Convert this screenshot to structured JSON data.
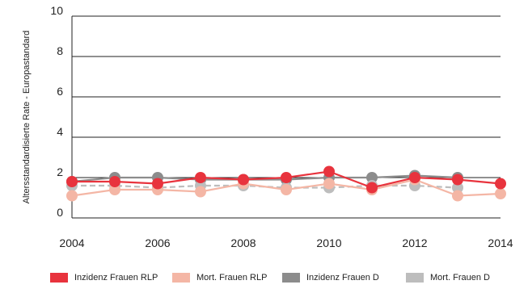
{
  "chart_data": {
    "type": "line",
    "ylabel": "Altersstandardisierte Rate - Europastandard",
    "xlabel": "",
    "title": "",
    "x": [
      2004,
      2005,
      2006,
      2007,
      2008,
      2009,
      2010,
      2011,
      2012,
      2013,
      2014
    ],
    "xticks": [
      "2004",
      "2006",
      "2008",
      "2010",
      "2012",
      "2014"
    ],
    "yticks": [
      "0",
      "2",
      "4",
      "6",
      "8",
      "10"
    ],
    "ylim": [
      0,
      10
    ],
    "xlim": [
      2004,
      2014
    ],
    "grid": "horizontal",
    "legend_position": "bottom",
    "series": [
      {
        "name": "Inzidenz Frauen D",
        "color": "#8c8c8c",
        "dash": "solid",
        "values": [
          1.8,
          2.0,
          2.0,
          1.9,
          1.9,
          1.9,
          2.0,
          2.0,
          2.1,
          2.0,
          null
        ]
      },
      {
        "name": "Mort. Frauen D",
        "color": "#bdbdbd",
        "dash": "dashed",
        "values": [
          1.6,
          1.6,
          1.5,
          1.6,
          1.6,
          1.5,
          1.5,
          1.6,
          1.6,
          1.5,
          null
        ]
      },
      {
        "name": "Mort. Frauen RLP",
        "color": "#f4b6a5",
        "dash": "solid",
        "values": [
          1.1,
          1.4,
          1.4,
          1.3,
          1.7,
          1.4,
          1.7,
          1.4,
          1.9,
          1.1,
          1.2
        ]
      },
      {
        "name": "Inzidenz Frauen RLP",
        "color": "#e8333d",
        "dash": "solid",
        "values": [
          1.8,
          1.8,
          1.7,
          2.0,
          1.9,
          2.0,
          2.3,
          1.5,
          2.0,
          1.9,
          1.7
        ]
      }
    ],
    "legend": [
      {
        "label": "Inzidenz Frauen RLP",
        "color": "#e8333d"
      },
      {
        "label": "Mort. Frauen RLP",
        "color": "#f4b6a5"
      },
      {
        "label": "Inzidenz Frauen D",
        "color": "#8c8c8c"
      },
      {
        "label": "Mort. Frauen D",
        "color": "#bdbdbd"
      }
    ]
  }
}
